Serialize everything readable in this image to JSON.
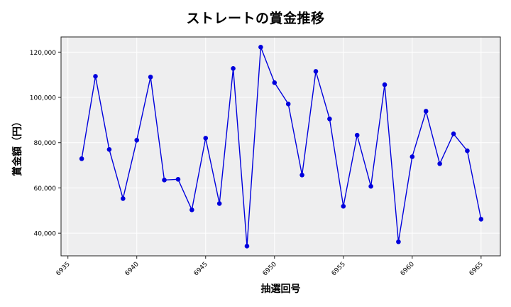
{
  "chart_data": {
    "type": "line",
    "title": "ストレートの賞金推移",
    "xlabel": "抽選回号",
    "ylabel": "賞金額（円）",
    "x": [
      6936,
      6937,
      6938,
      6939,
      6940,
      6941,
      6942,
      6943,
      6944,
      6945,
      6946,
      6947,
      6948,
      6949,
      6950,
      6951,
      6952,
      6953,
      6954,
      6955,
      6956,
      6957,
      6958,
      6959,
      6960,
      6961,
      6962,
      6963,
      6964,
      6965
    ],
    "series": [
      {
        "name": "ストレート",
        "color": "#0000dd",
        "marker": "circle",
        "values": [
          72900,
          109300,
          77000,
          55300,
          81100,
          109000,
          63500,
          63800,
          50300,
          82000,
          53100,
          112800,
          34300,
          122200,
          106500,
          97100,
          65700,
          111500,
          90500,
          51900,
          83300,
          60700,
          105600,
          36200,
          73800,
          93900,
          70700,
          83900,
          76400,
          46200
        ]
      }
    ],
    "xticks": [
      6935,
      6940,
      6945,
      6950,
      6955,
      6960,
      6965
    ],
    "yticks": [
      40000,
      60000,
      80000,
      100000,
      120000
    ],
    "ytick_labels": [
      "40,000",
      "60,000",
      "80,000",
      "100,000",
      "120,000"
    ],
    "xlim": [
      6934.5,
      6966.4
    ],
    "ylim": [
      30000,
      126700
    ],
    "grid": true,
    "background": "#eeeeef",
    "legend": null
  }
}
